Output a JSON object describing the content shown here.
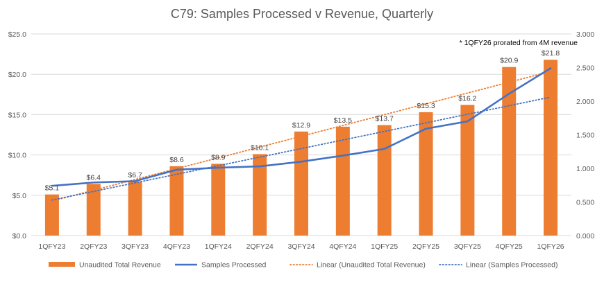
{
  "chart_data": {
    "type": "bar",
    "title": "C79: Samples Processed v Revenue, Quarterly",
    "note": "* 1QFY26 prorated from 4M revenue",
    "categories": [
      "1QFY23",
      "2QFY23",
      "3QFY23",
      "4QFY23",
      "1QFY24",
      "2QFY24",
      "3QFY24",
      "4QFY24",
      "1QFY25",
      "2QFY25",
      "3QFY25",
      "4QFY25",
      "1QFY26"
    ],
    "series": [
      {
        "name": "Unaudited Total Revenue",
        "type": "bar",
        "axis": "left",
        "color": "#ED7D31",
        "values": [
          5.1,
          6.4,
          6.7,
          8.6,
          8.9,
          10.1,
          12.9,
          13.5,
          13.7,
          15.3,
          16.2,
          20.9,
          21.8
        ],
        "data_labels": [
          "$5.1",
          "$6.4",
          "$6.7",
          "$8.6",
          "$8.9",
          "$10.1",
          "$12.9",
          "$13.5",
          "$13.7",
          "$15.3",
          "$16.2",
          "$20.9",
          "$21.8"
        ]
      },
      {
        "name": "Samples Processed",
        "type": "line",
        "axis": "right",
        "color": "#4472C4",
        "values": [
          0.74,
          0.79,
          0.81,
          0.98,
          1.01,
          1.03,
          1.1,
          1.19,
          1.29,
          1.59,
          1.7,
          2.11,
          2.49
        ]
      }
    ],
    "trendlines": [
      {
        "name": "Linear (Unaudited Total Revenue)",
        "color": "#ED7D31",
        "axis": "left",
        "of": "Unaudited Total Revenue"
      },
      {
        "name": "Linear (Samples Processed)",
        "color": "#4472C4",
        "axis": "right",
        "of": "Samples Processed"
      }
    ],
    "y_left": {
      "min": 0,
      "max": 25,
      "ticks": [
        "$0.0",
        "$5.0",
        "$10.0",
        "$15.0",
        "$20.0",
        "$25.0"
      ]
    },
    "y_right": {
      "min": 0,
      "max": 3,
      "ticks": [
        "0.000",
        "0.500",
        "1.000",
        "1.500",
        "2.000",
        "2.500",
        "3.000"
      ]
    },
    "grid": true,
    "legend_position": "bottom"
  }
}
